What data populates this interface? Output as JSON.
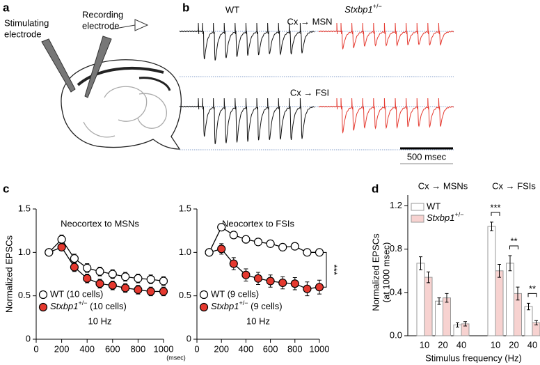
{
  "panel_labels": [
    "a",
    "b",
    "c",
    "d"
  ],
  "diagram": {
    "stimulating": [
      "Stimulating",
      "electrode"
    ],
    "recording": [
      "Recording",
      "electrode"
    ]
  },
  "traces": {
    "wt_label": "WT",
    "mutant_label": "Stxbp1+/−",
    "rows": [
      "Cx → MSN",
      "Cx → FSI"
    ],
    "scale_bar": "500 msec"
  },
  "chart_data": [
    {
      "type": "line",
      "title": "Neocortex to MSNs",
      "y_label": "Normalized EPSCs",
      "x_label": "(msec)",
      "note": "10 Hz",
      "x": [
        100,
        200,
        300,
        400,
        500,
        600,
        700,
        800,
        900,
        1000
      ],
      "xlim": [
        0,
        1000
      ],
      "xticks": [
        0,
        200,
        400,
        600,
        800,
        1000
      ],
      "ylim": [
        0,
        1.5
      ],
      "yticks": [
        0,
        0.5,
        {
          "value": 1,
          "label": "1.0"
        },
        1.5
      ],
      "legend": "lower left",
      "series": [
        {
          "name": "WT (10 cells)",
          "color": "#ffffff",
          "values": [
            1.0,
            1.15,
            0.93,
            0.82,
            0.78,
            0.75,
            0.72,
            0.7,
            0.69,
            0.67
          ],
          "errors": [
            0.02,
            0.05,
            0.05,
            0.05,
            0.05,
            0.05,
            0.05,
            0.05,
            0.05,
            0.05
          ]
        },
        {
          "name": "Stxbp1+/− (10 cells)",
          "color": "#e5392f",
          "values": [
            1.0,
            1.06,
            0.83,
            0.7,
            0.64,
            0.62,
            0.59,
            0.57,
            0.55,
            0.55
          ],
          "errors": [
            0.02,
            0.04,
            0.05,
            0.05,
            0.05,
            0.05,
            0.05,
            0.05,
            0.05,
            0.05
          ]
        }
      ]
    },
    {
      "type": "line",
      "title": "Neocortex to FSIs",
      "note": "10 Hz",
      "significance": "***",
      "x": [
        100,
        200,
        300,
        400,
        500,
        600,
        700,
        800,
        900,
        1000
      ],
      "xlim": [
        0,
        1000
      ],
      "xticks": [
        0,
        200,
        400,
        600,
        800,
        1000
      ],
      "ylim": [
        0,
        1.5
      ],
      "yticks": [
        0,
        0.5,
        {
          "value": 1,
          "label": "1.0"
        },
        1.5
      ],
      "legend": "lower left",
      "series": [
        {
          "name": "WT (9 cells)",
          "color": "#ffffff",
          "values": [
            1.0,
            1.29,
            1.2,
            1.15,
            1.12,
            1.1,
            1.06,
            1.07,
            1.0,
            1.0
          ],
          "errors": [
            0.02,
            0.04,
            0.04,
            0.04,
            0.04,
            0.04,
            0.04,
            0.04,
            0.04,
            0.04
          ]
        },
        {
          "name": "Stxbp1+/− (9 cells)",
          "color": "#e5392f",
          "values": [
            1.0,
            1.04,
            0.87,
            0.74,
            0.7,
            0.67,
            0.65,
            0.64,
            0.58,
            0.6
          ],
          "errors": [
            0.02,
            0.06,
            0.07,
            0.07,
            0.07,
            0.07,
            0.07,
            0.07,
            0.08,
            0.08
          ]
        }
      ]
    },
    {
      "type": "bar",
      "y_label": [
        "Normalized EPSCs",
        "(at 1000 msec)"
      ],
      "x_label": "Stimulus frequency (Hz)",
      "group_labels": [
        "Cx → MSNs",
        "Cx → FSIs"
      ],
      "categories": [
        "10",
        "20",
        "40",
        "10",
        "20",
        "40"
      ],
      "ylim": [
        0,
        1.3
      ],
      "yticks": [
        {
          "value": 0,
          "label": "0.0"
        },
        0.4,
        0.8,
        1.2
      ],
      "legend": "upper left",
      "annotations": [
        "***",
        "**",
        "**"
      ],
      "series": [
        {
          "name": "WT",
          "color": "#ffffff",
          "values": [
            0.67,
            0.32,
            0.1,
            1.01,
            0.67,
            0.27
          ],
          "errors": [
            0.06,
            0.03,
            0.02,
            0.04,
            0.07,
            0.03
          ]
        },
        {
          "name": "Stxbp1+/−",
          "color": "#f7d2d0",
          "values": [
            0.54,
            0.35,
            0.11,
            0.6,
            0.39,
            0.12
          ],
          "errors": [
            0.05,
            0.04,
            0.02,
            0.06,
            0.06,
            0.02
          ]
        }
      ]
    }
  ]
}
